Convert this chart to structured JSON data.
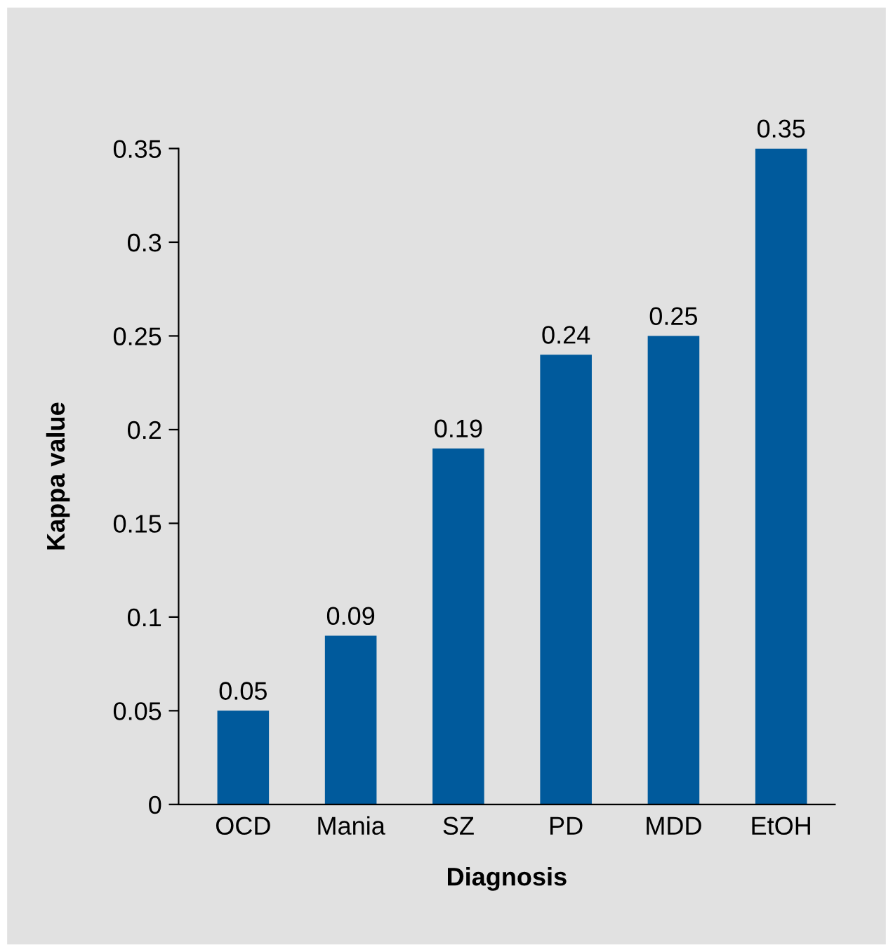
{
  "chart_data": {
    "type": "bar",
    "xlabel": "Diagnosis",
    "ylabel": "Kappa value",
    "categories": [
      "OCD",
      "Mania",
      "SZ",
      "PD",
      "MDD",
      "EtOH"
    ],
    "values": [
      0.05,
      0.09,
      0.19,
      0.24,
      0.25,
      0.35
    ],
    "color": "#005a9c",
    "ylim": [
      0,
      0.35
    ],
    "yticks": [
      0,
      0.05,
      0.1,
      0.15,
      0.2,
      0.25,
      0.3,
      0.35
    ],
    "data_labels": true,
    "grid": false,
    "legend": false
  }
}
